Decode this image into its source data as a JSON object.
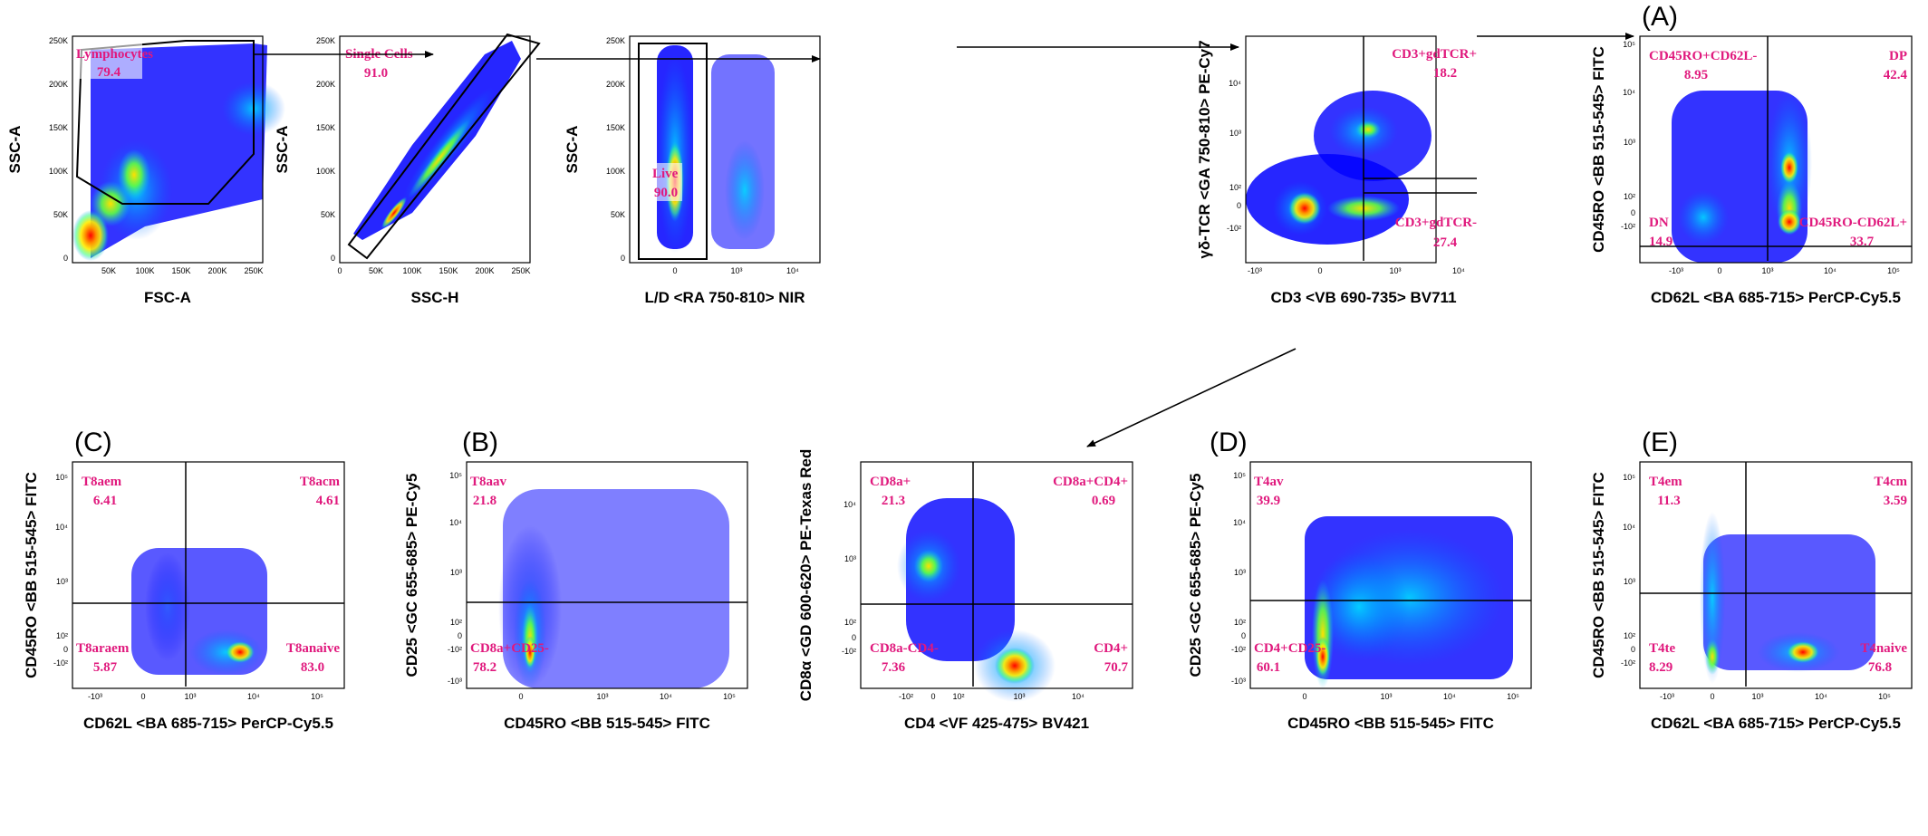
{
  "chart_data": [
    {
      "type": "scatter",
      "panel_label": "",
      "xlabel": "FSC-A",
      "ylabel": "SSC-A",
      "xlim": [
        0,
        262000
      ],
      "ylim": [
        0,
        262000
      ],
      "x_ticks": [
        "50K",
        "100K",
        "150K",
        "200K",
        "250K"
      ],
      "y_ticks": [
        "0",
        "50K",
        "100K",
        "150K",
        "200K",
        "250K"
      ],
      "gates": [
        {
          "name": "Lymphocytes",
          "value": "79.4"
        }
      ]
    },
    {
      "type": "scatter",
      "panel_label": "",
      "xlabel": "SSC-H",
      "ylabel": "SSC-A",
      "xlim": [
        0,
        262000
      ],
      "ylim": [
        0,
        262000
      ],
      "x_ticks": [
        "0",
        "50K",
        "100K",
        "150K",
        "200K",
        "250K"
      ],
      "y_ticks": [
        "0",
        "50K",
        "100K",
        "150K",
        "200K",
        "250K"
      ],
      "gates": [
        {
          "name": "Single Cells",
          "value": "91.0"
        }
      ]
    },
    {
      "type": "scatter",
      "panel_label": "",
      "xlabel": "L/D <RA 750-810> NIR",
      "ylabel": "SSC-A",
      "x_ticks": [
        "0",
        "10³",
        "10⁴"
      ],
      "y_ticks": [
        "0",
        "50K",
        "100K",
        "150K",
        "200K",
        "250K"
      ],
      "gates": [
        {
          "name": "Live",
          "value": "90.0"
        }
      ]
    },
    {
      "type": "scatter",
      "panel_label": "",
      "xlabel": "CD3 <VB 690-735> BV711",
      "ylabel": "γδ-TCR <GA 750-810> PE-Cy7",
      "x_ticks": [
        "-10³",
        "0",
        "10³",
        "10⁴"
      ],
      "y_ticks": [
        "-10²",
        "0",
        "10²",
        "10³",
        "10⁴"
      ],
      "gates": [
        {
          "name": "CD3+gdTCR+",
          "value": "18.2"
        },
        {
          "name": "CD3+gdTCR-",
          "value": "27.4"
        }
      ]
    },
    {
      "type": "scatter",
      "panel_label": "(A)",
      "xlabel": "CD62L <BA 685-715> PerCP-Cy5.5",
      "ylabel": "CD45RO <BB 515-545> FITC",
      "x_ticks": [
        "-10³",
        "0",
        "10³",
        "10⁴",
        "10⁵"
      ],
      "y_ticks": [
        "-10²",
        "0",
        "10²",
        "10³",
        "10⁴",
        "10⁵"
      ],
      "gates": [
        {
          "name": "CD45RO+CD62L-",
          "value": "8.95"
        },
        {
          "name": "DP",
          "value": "42.4"
        },
        {
          "name": "DN",
          "value": "14.9"
        },
        {
          "name": "CD45RO-CD62L+",
          "value": "33.7"
        }
      ]
    },
    {
      "type": "scatter",
      "panel_label": "(C)",
      "xlabel": "CD62L <BA 685-715> PerCP-Cy5.5",
      "ylabel": "CD45RO <BB 515-545> FITC",
      "x_ticks": [
        "-10³",
        "0",
        "10³",
        "10⁴",
        "10⁵"
      ],
      "y_ticks": [
        "-10²",
        "0",
        "10²",
        "10³",
        "10⁴",
        "10⁵"
      ],
      "gates": [
        {
          "name": "T8aem",
          "value": "6.41"
        },
        {
          "name": "T8acm",
          "value": "4.61"
        },
        {
          "name": "T8araem",
          "value": "5.87"
        },
        {
          "name": "T8anaive",
          "value": "83.0"
        }
      ]
    },
    {
      "type": "scatter",
      "panel_label": "(B)",
      "xlabel": "CD45RO <BB 515-545> FITC",
      "ylabel": "CD25 <GC 655-685> PE-Cy5",
      "x_ticks": [
        "0",
        "10³",
        "10⁴",
        "10⁵"
      ],
      "y_ticks": [
        "-10³",
        "-10²",
        "0",
        "10²",
        "10³",
        "10⁴",
        "10⁵"
      ],
      "gates": [
        {
          "name": "T8aav",
          "value": "21.8"
        },
        {
          "name": "CD8a+CD25-",
          "value": "78.2"
        }
      ]
    },
    {
      "type": "scatter",
      "panel_label": "",
      "xlabel": "CD4 <VF 425-475> BV421",
      "ylabel": "CD8α <GD 600-620> PE-Texas Red",
      "x_ticks": [
        "-10²",
        "0",
        "10²",
        "10³",
        "10⁴"
      ],
      "y_ticks": [
        "-10²",
        "0",
        "10²",
        "10³",
        "10⁴"
      ],
      "gates": [
        {
          "name": "CD8a+",
          "value": "21.3"
        },
        {
          "name": "CD8a+CD4+",
          "value": "0.69"
        },
        {
          "name": "CD8a-CD4-",
          "value": "7.36"
        },
        {
          "name": "CD4+",
          "value": "70.7"
        }
      ]
    },
    {
      "type": "scatter",
      "panel_label": "(D)",
      "xlabel": "CD45RO <BB 515-545> FITC",
      "ylabel": "CD25 <GC 655-685> PE-Cy5",
      "x_ticks": [
        "0",
        "10³",
        "10⁴",
        "10⁵"
      ],
      "y_ticks": [
        "-10³",
        "-10²",
        "0",
        "10²",
        "10³",
        "10⁴",
        "10⁵"
      ],
      "gates": [
        {
          "name": "T4av",
          "value": "39.9"
        },
        {
          "name": "CD4+CD25-",
          "value": "60.1"
        }
      ]
    },
    {
      "type": "scatter",
      "panel_label": "(E)",
      "xlabel": "CD62L <BA 685-715> PerCP-Cy5.5",
      "ylabel": "CD45RO <BB 515-545> FITC",
      "x_ticks": [
        "-10³",
        "0",
        "10³",
        "10⁴",
        "10⁵"
      ],
      "y_ticks": [
        "-10²",
        "0",
        "10²",
        "10³",
        "10⁴",
        "10⁵"
      ],
      "gates": [
        {
          "name": "T4em",
          "value": "11.3"
        },
        {
          "name": "T4cm",
          "value": "3.59"
        },
        {
          "name": "T4te",
          "value": "8.29"
        },
        {
          "name": "T4naive",
          "value": "76.8"
        }
      ]
    }
  ],
  "colors": {
    "gate_label": "#e0197d",
    "density": [
      "#0000ff",
      "#00a0ff",
      "#00e0c0",
      "#80ff40",
      "#ffee00",
      "#ff8000",
      "#ff0000"
    ]
  }
}
